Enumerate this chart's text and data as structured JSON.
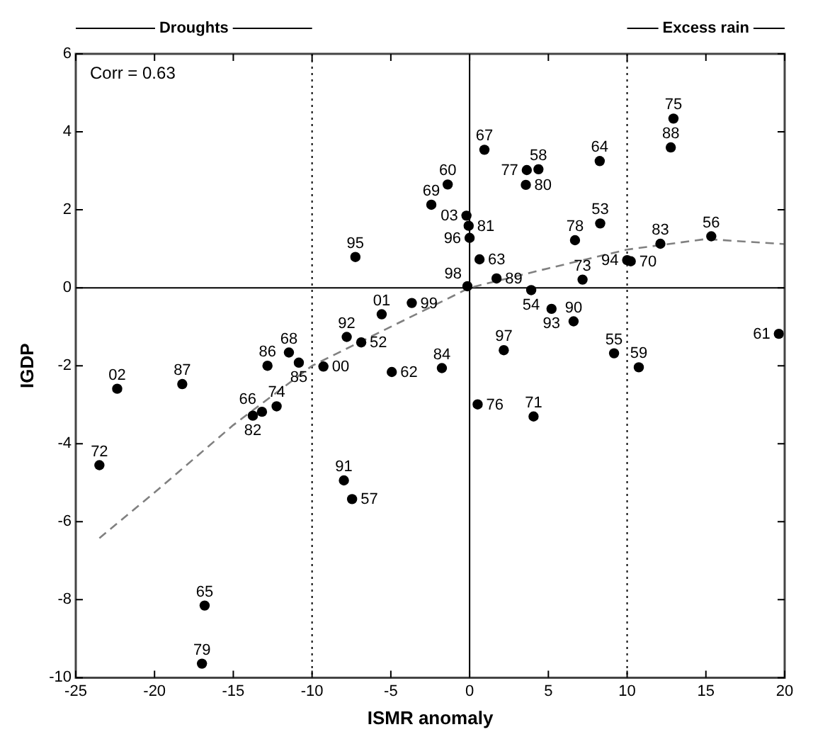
{
  "chart_data": {
    "type": "scatter",
    "xlabel": "ISMR anomaly",
    "ylabel": "IGDP",
    "xlim": [
      -25,
      20
    ],
    "ylim": [
      -10,
      6
    ],
    "xticks": [
      -25,
      -20,
      -15,
      -10,
      -5,
      0,
      5,
      10,
      15,
      20
    ],
    "yticks": [
      -10,
      -8,
      -6,
      -4,
      -2,
      0,
      2,
      4,
      6
    ],
    "grid": false,
    "legend": false,
    "annotations": [
      "Corr = 0.63",
      "Droughts",
      "Excess rain",
      {
        "text": "60",
        "x": -1.39,
        "y": 2.65
      },
      {
        "text": "69",
        "x": -2.43,
        "y": 2.13
      },
      {
        "text": "95",
        "x": -7.25,
        "y": 0.79
      },
      {
        "text": "01",
        "x": -5.58,
        "y": -0.68
      },
      {
        "text": "99",
        "x": -3.67,
        "y": -0.39
      },
      {
        "text": "92",
        "x": -7.8,
        "y": -1.26
      },
      {
        "text": "52",
        "x": -6.88,
        "y": -1.4
      },
      {
        "text": "00",
        "x": -9.28,
        "y": -2.02
      },
      {
        "text": "62",
        "x": -4.94,
        "y": -2.16
      },
      {
        "text": "84",
        "x": -1.76,
        "y": -2.06
      },
      {
        "text": "86",
        "x": -12.83,
        "y": -2.0
      },
      {
        "text": "68",
        "x": -11.47,
        "y": -1.66
      },
      {
        "text": "85",
        "x": -10.84,
        "y": -1.92
      },
      {
        "text": "02",
        "x": -22.37,
        "y": -2.59
      },
      {
        "text": "87",
        "x": -18.24,
        "y": -2.47
      },
      {
        "text": "66",
        "x": -13.18,
        "y": -3.18
      },
      {
        "text": "82",
        "x": -13.76,
        "y": -3.28
      },
      {
        "text": "74",
        "x": -12.25,
        "y": -3.04
      },
      {
        "text": "72",
        "x": -23.5,
        "y": -4.55
      },
      {
        "text": "91",
        "x": -7.98,
        "y": -4.94
      },
      {
        "text": "57",
        "x": -7.46,
        "y": -5.42
      },
      {
        "text": "65",
        "x": -16.82,
        "y": -8.15
      },
      {
        "text": "79",
        "x": -16.99,
        "y": -9.64
      },
      {
        "text": "67",
        "x": 0.94,
        "y": 3.54
      },
      {
        "text": "77",
        "x": 3.63,
        "y": 3.02
      },
      {
        "text": "58",
        "x": 4.37,
        "y": 3.04
      },
      {
        "text": "80",
        "x": 3.57,
        "y": 2.64
      },
      {
        "text": "64",
        "x": 8.26,
        "y": 3.25
      },
      {
        "text": "75",
        "x": 12.94,
        "y": 4.34
      },
      {
        "text": "88",
        "x": 12.77,
        "y": 3.6
      },
      {
        "text": "03",
        "x": -0.2,
        "y": 1.85
      },
      {
        "text": "81",
        "x": -0.06,
        "y": 1.59
      },
      {
        "text": "96",
        "x": 0.0,
        "y": 1.28
      },
      {
        "text": "63",
        "x": 0.63,
        "y": 0.73
      },
      {
        "text": "89",
        "x": 1.71,
        "y": 0.24
      },
      {
        "text": "98",
        "x": -0.14,
        "y": 0.04
      },
      {
        "text": "54",
        "x": 3.91,
        "y": -0.06
      },
      {
        "text": "93",
        "x": 5.2,
        "y": -0.54
      },
      {
        "text": "90",
        "x": 6.6,
        "y": -0.86
      },
      {
        "text": "97",
        "x": 2.17,
        "y": -1.6
      },
      {
        "text": "55",
        "x": 9.17,
        "y": -1.68
      },
      {
        "text": "59",
        "x": 10.74,
        "y": -2.04
      },
      {
        "text": "78",
        "x": 6.69,
        "y": 1.22
      },
      {
        "text": "53",
        "x": 8.29,
        "y": 1.65
      },
      {
        "text": "73",
        "x": 7.17,
        "y": 0.21
      },
      {
        "text": "94",
        "x": 10.0,
        "y": 0.71
      },
      {
        "text": "70",
        "x": 10.23,
        "y": 0.68
      },
      {
        "text": "83",
        "x": 12.11,
        "y": 1.13
      },
      {
        "text": "56",
        "x": 15.34,
        "y": 1.32
      },
      {
        "text": "61",
        "x": 19.63,
        "y": -1.18
      },
      {
        "text": "76",
        "x": 0.51,
        "y": -2.99
      },
      {
        "text": "71",
        "x": 4.06,
        "y": -3.3
      }
    ],
    "ref_lines": [
      {
        "axis": "x",
        "value": -10,
        "line_style": "dotted",
        "color": "#000000"
      },
      {
        "axis": "x",
        "value": 10,
        "line_style": "dotted",
        "color": "#000000"
      },
      {
        "axis": "x",
        "value": 0,
        "line_style": "solid",
        "color": "#000000"
      },
      {
        "axis": "y",
        "value": 0,
        "line_style": "solid",
        "color": "#000000"
      }
    ],
    "series": [
      {
        "color": "#000000",
        "marker": "circle",
        "x": [
          -1.39,
          -2.43,
          -7.25,
          -5.58,
          -3.67,
          -7.8,
          -6.88,
          -9.28,
          -4.94,
          -1.76,
          -12.83,
          -11.47,
          -10.84,
          -22.37,
          -18.24,
          -13.18,
          -13.76,
          -12.25,
          -23.5,
          -7.98,
          -7.46,
          -16.82,
          -16.99,
          0.94,
          3.63,
          4.37,
          3.57,
          8.26,
          12.94,
          12.77,
          -0.2,
          -0.06,
          0.0,
          0.63,
          1.71,
          -0.14,
          3.91,
          5.2,
          6.6,
          2.17,
          9.17,
          10.74,
          6.69,
          8.29,
          7.17,
          10.0,
          10.23,
          12.11,
          15.34,
          19.63,
          0.51,
          4.06
        ],
        "values": [
          2.65,
          2.13,
          0.79,
          -0.68,
          -0.39,
          -1.26,
          -1.4,
          -2.02,
          -2.16,
          -2.06,
          -2.0,
          -1.66,
          -1.92,
          -2.59,
          -2.47,
          -3.18,
          -3.28,
          -3.04,
          -4.55,
          -4.94,
          -5.42,
          -8.15,
          -9.64,
          3.54,
          3.02,
          3.04,
          2.64,
          3.25,
          4.34,
          3.6,
          1.85,
          1.59,
          1.28,
          0.73,
          0.24,
          0.04,
          -0.06,
          -0.54,
          -0.86,
          -1.6,
          -1.68,
          -2.04,
          1.22,
          1.65,
          0.21,
          0.71,
          0.68,
          1.13,
          1.32,
          -1.18,
          -2.99,
          -3.3
        ]
      },
      {
        "type": "line",
        "color": "#808080",
        "marker": "none",
        "line_style": "dashed",
        "x": [
          -23.5,
          -20,
          -15,
          -10,
          -5,
          0,
          5,
          10,
          15,
          20
        ],
        "values": [
          -6.42,
          -5.25,
          -3.52,
          -2.0,
          -1.0,
          0,
          0.5,
          0.98,
          1.25,
          1.12
        ]
      }
    ]
  }
}
